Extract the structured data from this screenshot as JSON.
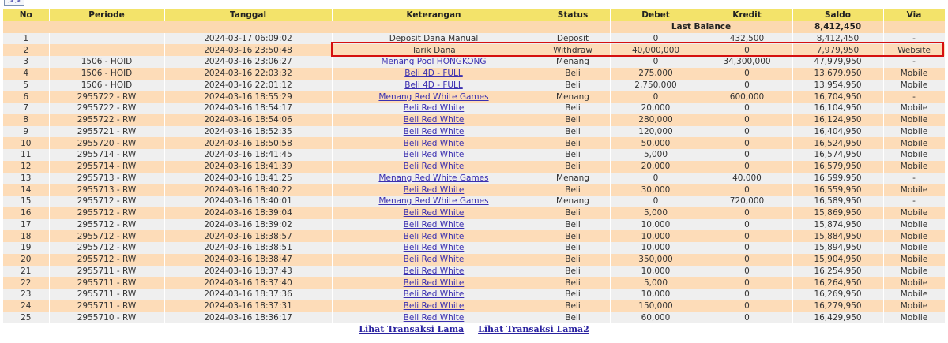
{
  "nav_button": ">>",
  "columns": [
    "No",
    "Periode",
    "Tanggal",
    "Keterangan",
    "Status",
    "Debet",
    "Kredit",
    "Saldo",
    "Via"
  ],
  "last_balance": {
    "label": "Last Balance",
    "value": "8,412,450"
  },
  "rows": [
    [
      "1",
      "",
      "2024-03-17 06:09:02",
      "Deposit Dana Manual",
      "Deposit",
      "0",
      "432,500",
      "8,412,450",
      "-",
      false
    ],
    [
      "2",
      "",
      "2024-03-16 23:50:48",
      "Tarik Dana",
      "Withdraw",
      "40,000,000",
      "0",
      "7,979,950",
      "Website",
      false
    ],
    [
      "3",
      "1506 - HOID",
      "2024-03-16 23:06:27",
      "Menang Pool HONGKONG",
      "Menang",
      "0",
      "34,300,000",
      "47,979,950",
      "-",
      true
    ],
    [
      "4",
      "1506 - HOID",
      "2024-03-16 22:03:32",
      "Beli 4D - FULL",
      "Beli",
      "275,000",
      "0",
      "13,679,950",
      "Mobile",
      true
    ],
    [
      "5",
      "1506 - HOID",
      "2024-03-16 22:01:12",
      "Beli 4D - FULL",
      "Beli",
      "2,750,000",
      "0",
      "13,954,950",
      "Mobile",
      true
    ],
    [
      "6",
      "2955722 - RW",
      "2024-03-16 18:55:29",
      "Menang Red White Games",
      "Menang",
      "0",
      "600,000",
      "16,704,950",
      "-",
      true
    ],
    [
      "7",
      "2955722 - RW",
      "2024-03-16 18:54:17",
      "Beli Red White",
      "Beli",
      "20,000",
      "0",
      "16,104,950",
      "Mobile",
      true
    ],
    [
      "8",
      "2955722 - RW",
      "2024-03-16 18:54:06",
      "Beli Red White",
      "Beli",
      "280,000",
      "0",
      "16,124,950",
      "Mobile",
      true
    ],
    [
      "9",
      "2955721 - RW",
      "2024-03-16 18:52:35",
      "Beli Red White",
      "Beli",
      "120,000",
      "0",
      "16,404,950",
      "Mobile",
      true
    ],
    [
      "10",
      "2955720 - RW",
      "2024-03-16 18:50:58",
      "Beli Red White",
      "Beli",
      "50,000",
      "0",
      "16,524,950",
      "Mobile",
      true
    ],
    [
      "11",
      "2955714 - RW",
      "2024-03-16 18:41:45",
      "Beli Red White",
      "Beli",
      "5,000",
      "0",
      "16,574,950",
      "Mobile",
      true
    ],
    [
      "12",
      "2955714 - RW",
      "2024-03-16 18:41:39",
      "Beli Red White",
      "Beli",
      "20,000",
      "0",
      "16,579,950",
      "Mobile",
      true
    ],
    [
      "13",
      "2955713 - RW",
      "2024-03-16 18:41:25",
      "Menang Red White Games",
      "Menang",
      "0",
      "40,000",
      "16,599,950",
      "-",
      true
    ],
    [
      "14",
      "2955713 - RW",
      "2024-03-16 18:40:22",
      "Beli Red White",
      "Beli",
      "30,000",
      "0",
      "16,559,950",
      "Mobile",
      true
    ],
    [
      "15",
      "2955712 - RW",
      "2024-03-16 18:40:01",
      "Menang Red White Games",
      "Menang",
      "0",
      "720,000",
      "16,589,950",
      "-",
      true
    ],
    [
      "16",
      "2955712 - RW",
      "2024-03-16 18:39:04",
      "Beli Red White",
      "Beli",
      "5,000",
      "0",
      "15,869,950",
      "Mobile",
      true
    ],
    [
      "17",
      "2955712 - RW",
      "2024-03-16 18:39:02",
      "Beli Red White",
      "Beli",
      "10,000",
      "0",
      "15,874,950",
      "Mobile",
      true
    ],
    [
      "18",
      "2955712 - RW",
      "2024-03-16 18:38:57",
      "Beli Red White",
      "Beli",
      "10,000",
      "0",
      "15,884,950",
      "Mobile",
      true
    ],
    [
      "19",
      "2955712 - RW",
      "2024-03-16 18:38:51",
      "Beli Red White",
      "Beli",
      "10,000",
      "0",
      "15,894,950",
      "Mobile",
      true
    ],
    [
      "20",
      "2955712 - RW",
      "2024-03-16 18:38:47",
      "Beli Red White",
      "Beli",
      "350,000",
      "0",
      "15,904,950",
      "Mobile",
      true
    ],
    [
      "21",
      "2955711 - RW",
      "2024-03-16 18:37:43",
      "Beli Red White",
      "Beli",
      "10,000",
      "0",
      "16,254,950",
      "Mobile",
      true
    ],
    [
      "22",
      "2955711 - RW",
      "2024-03-16 18:37:40",
      "Beli Red White",
      "Beli",
      "5,000",
      "0",
      "16,264,950",
      "Mobile",
      true
    ],
    [
      "23",
      "2955711 - RW",
      "2024-03-16 18:37:36",
      "Beli Red White",
      "Beli",
      "10,000",
      "0",
      "16,269,950",
      "Mobile",
      true
    ],
    [
      "24",
      "2955711 - RW",
      "2024-03-16 18:37:31",
      "Beli Red White",
      "Beli",
      "150,000",
      "0",
      "16,279,950",
      "Mobile",
      true
    ],
    [
      "25",
      "2955710 - RW",
      "2024-03-16 18:36:17",
      "Beli Red White",
      "Beli",
      "60,000",
      "0",
      "16,429,950",
      "Mobile",
      true
    ]
  ],
  "footer_links": [
    "Lihat Transaksi Lama",
    "Lihat Transaksi Lama2"
  ],
  "colors": {
    "header": "#f3e36a",
    "row_odd": "#efefef",
    "row_even": "#fddcb8",
    "status": "#c8402c",
    "link": "#3a2fb0",
    "highlight": "#d51010"
  }
}
